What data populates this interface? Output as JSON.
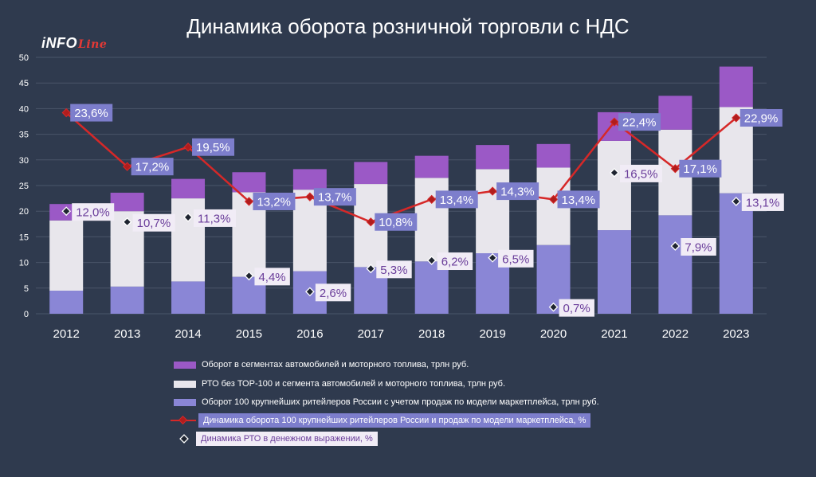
{
  "page": {
    "title": "Динамика оборота розничной торговли с НДС",
    "logo_main": "iNFO",
    "logo_accent": "Line"
  },
  "colors": {
    "background": "#2f3a4e",
    "segment_top": "#9b59c6",
    "segment_middle": "#e8e6ec",
    "segment_bottom": "#8a86d6",
    "line_red": "#d62828",
    "label_box_purple": "#7d7ecc",
    "label_box_white": "#f1ecf6",
    "label_text_purple": "#6a3d9a"
  },
  "chart_data": {
    "type": "bar",
    "stacked": true,
    "categories": [
      "2012",
      "2013",
      "2014",
      "2015",
      "2016",
      "2017",
      "2018",
      "2019",
      "2020",
      "2021",
      "2022",
      "2023"
    ],
    "ylim": [
      0,
      50
    ],
    "yticks": [
      0,
      5,
      10,
      15,
      20,
      25,
      30,
      35,
      40,
      45,
      50
    ],
    "grid": true,
    "series": [
      {
        "name": "Оборот 100 крупнейших ритейлеров России с учетом продаж по модели маркетплейса, трлн руб.",
        "key": "bottom",
        "values": [
          4.5,
          5.3,
          6.3,
          7.2,
          8.3,
          9.1,
          10.2,
          11.8,
          13.4,
          16.3,
          19.2,
          23.5
        ]
      },
      {
        "name": "РТО без ТОР-100 и сегмента автомобилей и моторного топлива, трлн руб.",
        "key": "middle",
        "values": [
          13.7,
          14.7,
          16.2,
          16.5,
          15.9,
          16.2,
          16.3,
          16.4,
          15.1,
          17.4,
          16.7,
          16.8
        ]
      },
      {
        "name": "Оборот в сегментах  автомобилей и моторного топлива, трлн руб.",
        "key": "top",
        "values": [
          3.2,
          3.6,
          3.8,
          3.9,
          4.0,
          4.3,
          4.3,
          4.7,
          4.6,
          5.6,
          6.6,
          7.9
        ]
      }
    ],
    "lines": [
      {
        "name": "Динамика оборота 100 крупнейших ритейлеров России и продаж по модели маркетплейса, %",
        "key": "red",
        "percent_values": [
          23.6,
          17.2,
          19.5,
          13.2,
          13.7,
          10.8,
          13.4,
          14.3,
          13.4,
          22.4,
          17.1,
          22.9
        ],
        "plot_values": [
          39.2,
          28.7,
          32.5,
          21.9,
          22.8,
          17.9,
          22.3,
          23.9,
          22.3,
          37.4,
          28.3,
          38.2
        ],
        "labels": [
          "23,6%",
          "17,2%",
          "19,5%",
          "13,2%",
          "13,7%",
          "10,8%",
          "13,4%",
          "14,3%",
          "13,4%",
          "22,4%",
          "17,1%",
          "22,9%"
        ]
      },
      {
        "name": "Динамика РТО в денежном выражении, %",
        "key": "diamond",
        "percent_values": [
          12.0,
          10.7,
          11.3,
          4.4,
          2.6,
          5.3,
          6.2,
          6.5,
          0.7,
          16.5,
          7.9,
          13.1
        ],
        "plot_values": [
          20.0,
          17.9,
          18.8,
          7.4,
          4.3,
          8.8,
          10.4,
          10.9,
          1.3,
          27.5,
          13.2,
          21.9
        ],
        "labels": [
          "12,0%",
          "10,7%",
          "11,3%",
          "4,4%",
          "2,6%",
          "5,3%",
          "6,2%",
          "6,5%",
          "0,7%",
          "16,5%",
          "7,9%",
          "13,1%"
        ]
      }
    ]
  }
}
